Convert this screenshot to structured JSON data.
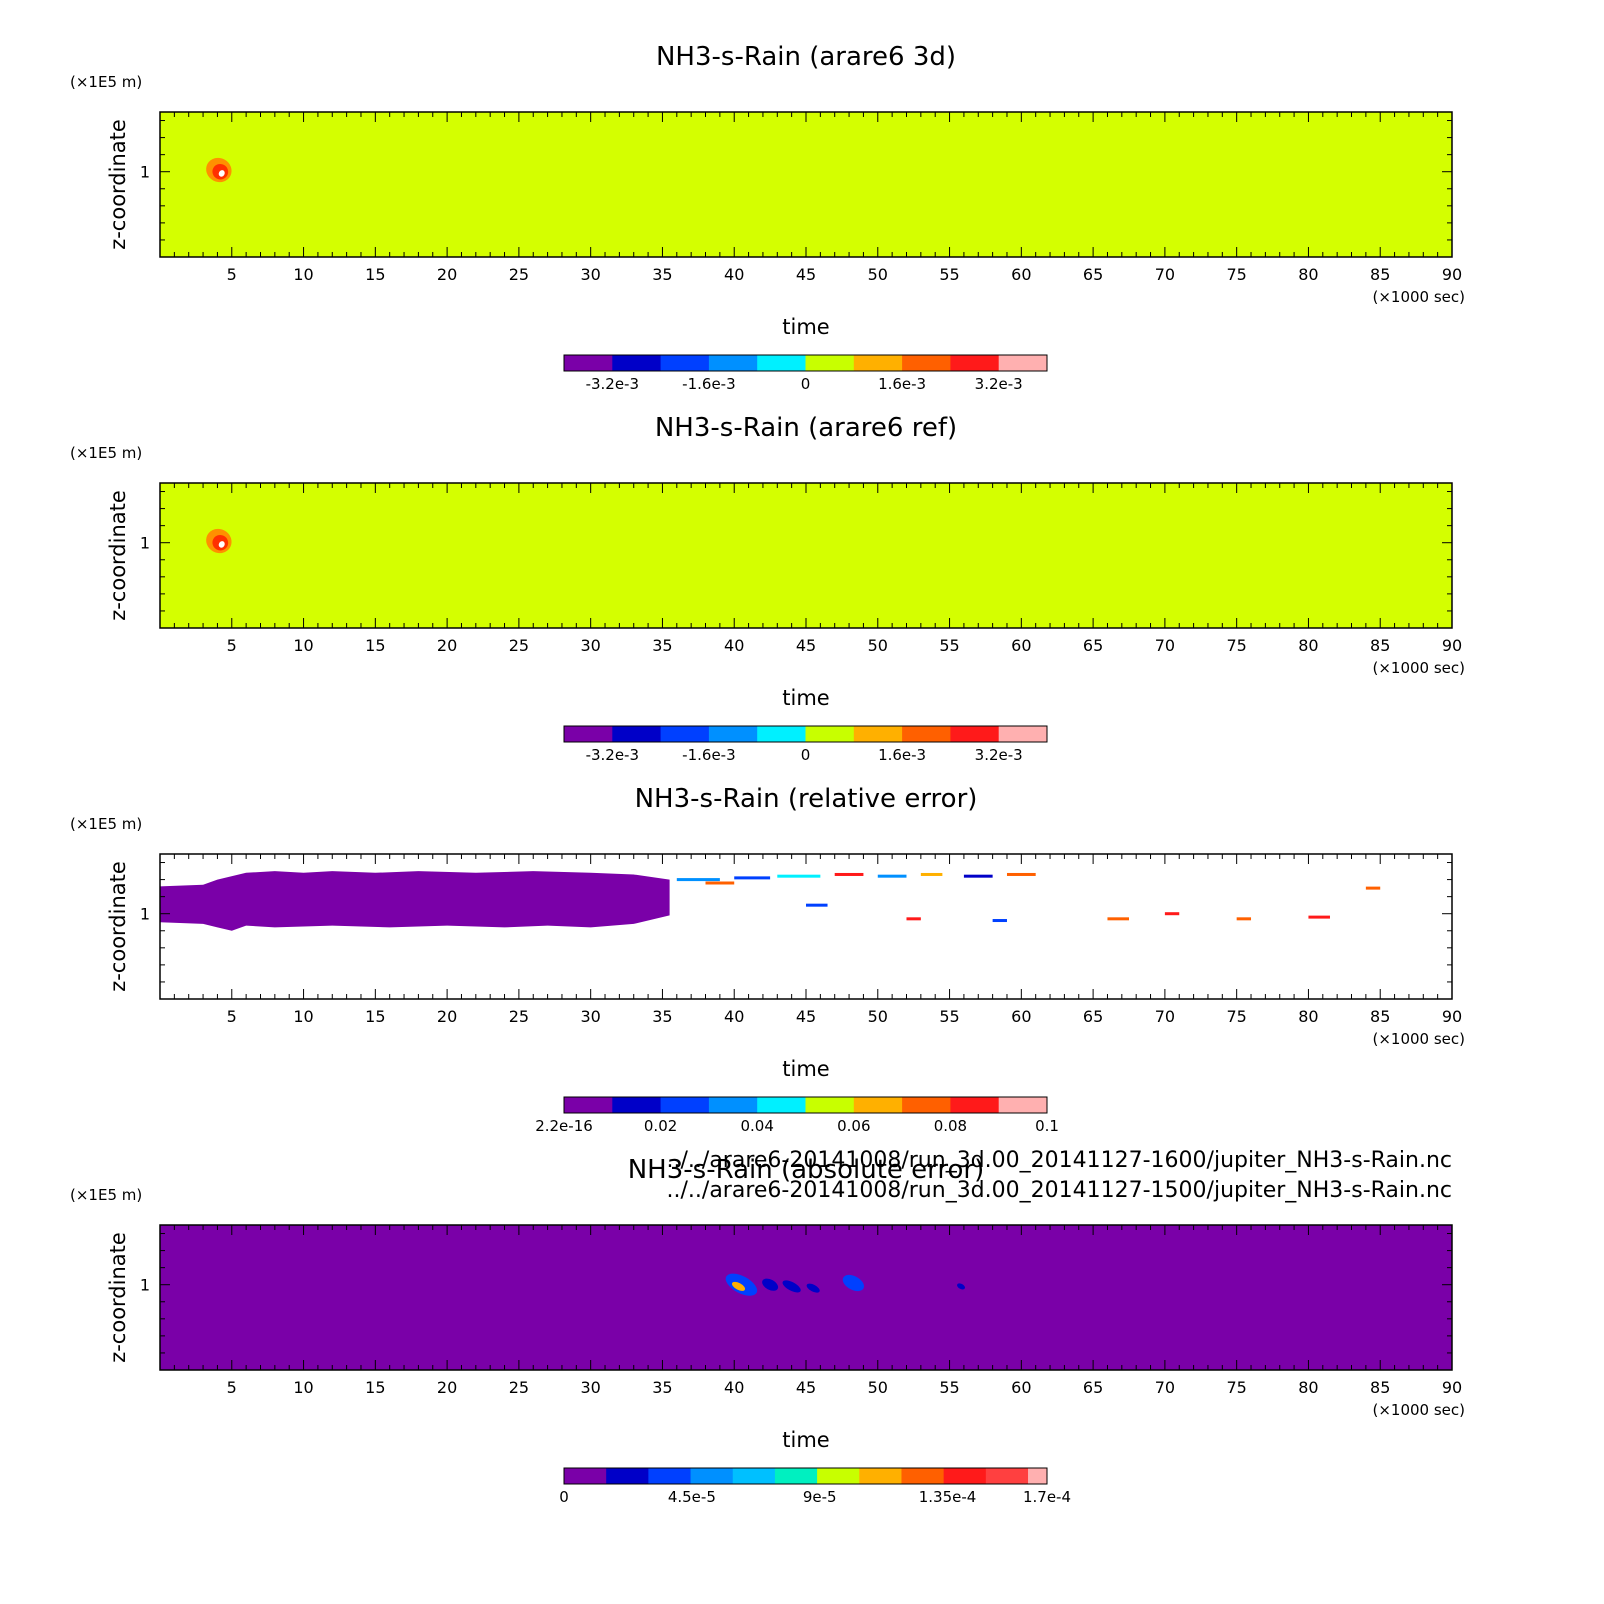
{
  "chart_data": [
    {
      "type": "heatmap",
      "title": "NH3-s-Rain (arare6 3d)",
      "xlabel": "time",
      "x_unit": "(×1000 sec)",
      "ylabel": "z-coordinate",
      "y_unit": "(×1E5 m)",
      "xlim": [
        0,
        90
      ],
      "xticks": [
        "5",
        "10",
        "15",
        "20",
        "25",
        "30",
        "35",
        "40",
        "45",
        "50",
        "55",
        "60",
        "65",
        "70",
        "75",
        "80",
        "85",
        "90"
      ],
      "yticks": [
        "1"
      ],
      "background_color": "#d4ff00",
      "colorbar": {
        "colors": [
          "#7a00a8",
          "#0000c8",
          "#0040ff",
          "#0090ff",
          "#00f0ff",
          "#c8ff00",
          "#ffb000",
          "#ff6000",
          "#ff1a1a",
          "#ffb0b0"
        ],
        "labels": [
          "-3.2e-3",
          "-1.6e-3",
          "0",
          "1.6e-3",
          "3.2e-3"
        ],
        "label_values": [
          -0.0032,
          -0.0016,
          0,
          0.0016,
          0.0032
        ],
        "range": [
          -0.004,
          0.004
        ]
      },
      "features": [
        {
          "kind": "blob",
          "x": 4.1,
          "z": 1.01,
          "dx": 0.9,
          "dz": 0.07,
          "color": "#ff9000"
        },
        {
          "kind": "blob",
          "x": 4.2,
          "z": 1.0,
          "dx": 0.55,
          "dz": 0.045,
          "color": "#ff3000"
        },
        {
          "kind": "blob",
          "x": 4.3,
          "z": 0.99,
          "dx": 0.2,
          "dz": 0.02,
          "color": "#ffffff"
        }
      ]
    },
    {
      "type": "heatmap",
      "title": "NH3-s-Rain (arare6 ref)",
      "xlabel": "time",
      "x_unit": "(×1000 sec)",
      "ylabel": "z-coordinate",
      "y_unit": "(×1E5 m)",
      "xlim": [
        0,
        90
      ],
      "xticks": [
        "5",
        "10",
        "15",
        "20",
        "25",
        "30",
        "35",
        "40",
        "45",
        "50",
        "55",
        "60",
        "65",
        "70",
        "75",
        "80",
        "85",
        "90"
      ],
      "yticks": [
        "1"
      ],
      "background_color": "#d4ff00",
      "colorbar": {
        "colors": [
          "#7a00a8",
          "#0000c8",
          "#0040ff",
          "#0090ff",
          "#00f0ff",
          "#c8ff00",
          "#ffb000",
          "#ff6000",
          "#ff1a1a",
          "#ffb0b0"
        ],
        "labels": [
          "-3.2e-3",
          "-1.6e-3",
          "0",
          "1.6e-3",
          "3.2e-3"
        ],
        "label_values": [
          -0.0032,
          -0.0016,
          0,
          0.0016,
          0.0032
        ],
        "range": [
          -0.004,
          0.004
        ]
      },
      "features": [
        {
          "kind": "blob",
          "x": 4.1,
          "z": 1.01,
          "dx": 0.9,
          "dz": 0.07,
          "color": "#ff9000"
        },
        {
          "kind": "blob",
          "x": 4.2,
          "z": 1.0,
          "dx": 0.55,
          "dz": 0.045,
          "color": "#ff3000"
        },
        {
          "kind": "blob",
          "x": 4.3,
          "z": 0.99,
          "dx": 0.2,
          "dz": 0.02,
          "color": "#ffffff"
        }
      ]
    },
    {
      "type": "heatmap",
      "title": "NH3-s-Rain (relative error)",
      "xlabel": "time",
      "x_unit": "(×1000 sec)",
      "ylabel": "z-coordinate",
      "y_unit": "(×1E5 m)",
      "xlim": [
        0,
        90
      ],
      "xticks": [
        "5",
        "10",
        "15",
        "20",
        "25",
        "30",
        "35",
        "40",
        "45",
        "50",
        "55",
        "60",
        "65",
        "70",
        "75",
        "80",
        "85",
        "90"
      ],
      "yticks": [
        "1"
      ],
      "background_color": "#ffffff",
      "colorbar": {
        "colors": [
          "#7a00a8",
          "#0000c8",
          "#0040ff",
          "#0090ff",
          "#00f0ff",
          "#c8ff00",
          "#ffb000",
          "#ff6000",
          "#ff1a1a",
          "#ffb0b0"
        ],
        "labels": [
          "2.2e-16",
          "0.02",
          "0.04",
          "0.06",
          "0.08",
          "0.1"
        ],
        "label_values": [
          0,
          0.02,
          0.04,
          0.06,
          0.08,
          0.1
        ],
        "range": [
          0,
          0.1
        ]
      },
      "region": {
        "color": "#7a00a8",
        "x_start": 0,
        "x_end": 35.5,
        "top": [
          [
            0,
            1.16
          ],
          [
            3,
            1.17
          ],
          [
            4,
            1.2
          ],
          [
            6,
            1.24
          ],
          [
            8,
            1.25
          ],
          [
            10,
            1.24
          ],
          [
            12,
            1.25
          ],
          [
            15,
            1.24
          ],
          [
            18,
            1.25
          ],
          [
            22,
            1.24
          ],
          [
            26,
            1.25
          ],
          [
            30,
            1.24
          ],
          [
            33,
            1.23
          ],
          [
            35.5,
            1.2
          ]
        ],
        "bottom": [
          [
            35.5,
            0.99
          ],
          [
            33,
            0.94
          ],
          [
            30,
            0.92
          ],
          [
            27,
            0.93
          ],
          [
            24,
            0.92
          ],
          [
            20,
            0.93
          ],
          [
            16,
            0.92
          ],
          [
            12,
            0.93
          ],
          [
            8,
            0.92
          ],
          [
            6,
            0.93
          ],
          [
            5,
            0.9
          ],
          [
            4,
            0.92
          ],
          [
            3,
            0.94
          ],
          [
            0,
            0.95
          ]
        ]
      },
      "features": [
        {
          "kind": "streak",
          "x": 36,
          "z": 1.2,
          "len": 3,
          "color": "#0090ff"
        },
        {
          "kind": "streak",
          "x": 38,
          "z": 1.18,
          "len": 2,
          "color": "#ff6000"
        },
        {
          "kind": "streak",
          "x": 40,
          "z": 1.21,
          "len": 2.5,
          "color": "#0040ff"
        },
        {
          "kind": "streak",
          "x": 43,
          "z": 1.22,
          "len": 3,
          "color": "#00f0ff"
        },
        {
          "kind": "streak",
          "x": 47,
          "z": 1.23,
          "len": 2,
          "color": "#ff1a1a"
        },
        {
          "kind": "streak",
          "x": 50,
          "z": 1.22,
          "len": 2,
          "color": "#0090ff"
        },
        {
          "kind": "streak",
          "x": 53,
          "z": 1.23,
          "len": 1.5,
          "color": "#ffb000"
        },
        {
          "kind": "streak",
          "x": 56,
          "z": 1.22,
          "len": 2,
          "color": "#0000c8"
        },
        {
          "kind": "streak",
          "x": 59,
          "z": 1.23,
          "len": 2,
          "color": "#ff6000"
        },
        {
          "kind": "streak",
          "x": 45,
          "z": 1.05,
          "len": 1.5,
          "color": "#0040ff"
        },
        {
          "kind": "streak",
          "x": 52,
          "z": 0.97,
          "len": 1,
          "color": "#ff1a1a"
        },
        {
          "kind": "streak",
          "x": 58,
          "z": 0.96,
          "len": 1,
          "color": "#0040ff"
        },
        {
          "kind": "streak",
          "x": 66,
          "z": 0.97,
          "len": 1.5,
          "color": "#ff6000"
        },
        {
          "kind": "streak",
          "x": 70,
          "z": 1.0,
          "len": 1,
          "color": "#ff1a1a"
        },
        {
          "kind": "streak",
          "x": 75,
          "z": 0.97,
          "len": 1,
          "color": "#ff6000"
        },
        {
          "kind": "streak",
          "x": 80,
          "z": 0.98,
          "len": 1.5,
          "color": "#ff1a1a"
        },
        {
          "kind": "streak",
          "x": 84,
          "z": 1.15,
          "len": 1,
          "color": "#ff6000"
        }
      ]
    },
    {
      "type": "heatmap",
      "title": "NH3-s-Rain (absolute error)",
      "xlabel": "time",
      "x_unit": "(×1000 sec)",
      "ylabel": "z-coordinate",
      "y_unit": "(×1E5 m)",
      "xlim": [
        0,
        90
      ],
      "xticks": [
        "5",
        "10",
        "15",
        "20",
        "25",
        "30",
        "35",
        "40",
        "45",
        "50",
        "55",
        "60",
        "65",
        "70",
        "75",
        "80",
        "85",
        "90"
      ],
      "yticks": [
        "1"
      ],
      "background_color": "#7a00a8",
      "colorbar": {
        "colors": [
          "#7a00a8",
          "#0000c8",
          "#0040ff",
          "#0090ff",
          "#00c0ff",
          "#00f0c0",
          "#c8ff00",
          "#ffb000",
          "#ff6000",
          "#ff1a1a",
          "#ff4040",
          "#ffb0b0"
        ],
        "widths": [
          1,
          1,
          1,
          1,
          1,
          1,
          1,
          1,
          1,
          1,
          1,
          0.45
        ],
        "labels": [
          "0",
          "4.5e-5",
          "9e-5",
          "1.35e-4",
          "1.7e-4"
        ],
        "label_values": [
          0,
          4.5e-05,
          9e-05,
          0.000135,
          0.00017
        ],
        "range": [
          0,
          0.00017
        ]
      },
      "features": [
        {
          "kind": "blob",
          "x": 40.5,
          "z": 1.0,
          "dx": 1.2,
          "dz": 0.05,
          "color": "#0040ff"
        },
        {
          "kind": "blob",
          "x": 40.3,
          "z": 0.99,
          "dx": 0.5,
          "dz": 0.02,
          "color": "#ffb000"
        },
        {
          "kind": "blob",
          "x": 42.5,
          "z": 1.0,
          "dx": 0.6,
          "dz": 0.03,
          "color": "#0000c8"
        },
        {
          "kind": "blob",
          "x": 44,
          "z": 0.99,
          "dx": 0.7,
          "dz": 0.025,
          "color": "#0000c8"
        },
        {
          "kind": "blob",
          "x": 45.5,
          "z": 0.98,
          "dx": 0.5,
          "dz": 0.02,
          "color": "#0000c8"
        },
        {
          "kind": "blob",
          "x": 48.3,
          "z": 1.01,
          "dx": 0.8,
          "dz": 0.04,
          "color": "#0040ff"
        },
        {
          "kind": "blob",
          "x": 55.8,
          "z": 0.99,
          "dx": 0.3,
          "dz": 0.015,
          "color": "#0000c8"
        }
      ],
      "file_lines": [
        "../../arare6-20141008/run_3d.00_20141127-1600/jupiter_NH3-s-Rain.nc",
        "../../arare6-20141008/run_3d.00_20141127-1500/jupiter_NH3-s-Rain.nc"
      ]
    }
  ]
}
